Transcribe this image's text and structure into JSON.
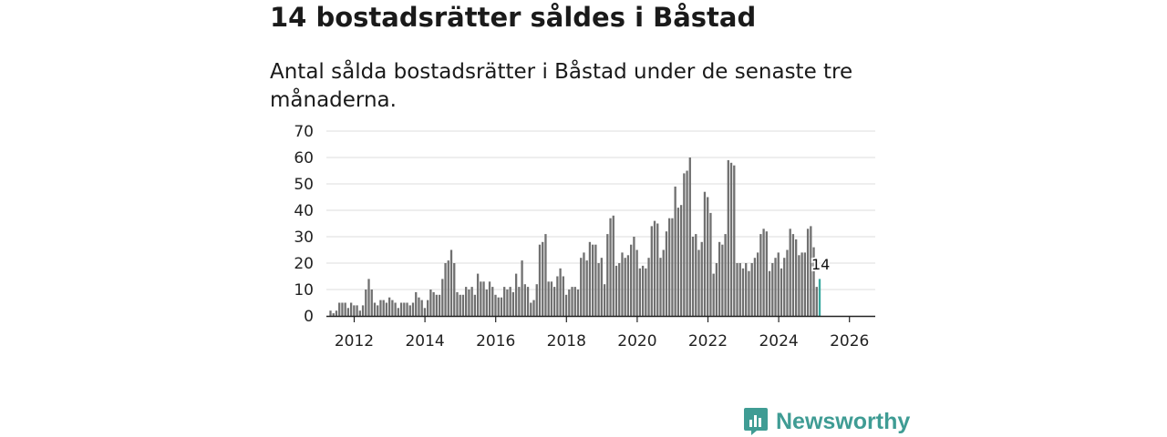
{
  "header": {
    "title": "14 bostadsrätter såldes i Båstad",
    "subtitle": "Antal sålda bostadsrätter i Båstad under de senaste tre månaderna."
  },
  "brand": {
    "name": "Newsworthy",
    "color": "#3f9c94"
  },
  "colors": {
    "bar": "#707070",
    "highlight": "#3aa99f",
    "grid": "#dddddd",
    "axis": "#222222"
  },
  "chart_data": {
    "type": "bar",
    "title": "14 bostadsrätter såldes i Båstad",
    "subtitle": "Antal sålda bostadsrätter i Båstad under de senaste tre månaderna.",
    "xlabel": "",
    "ylabel": "",
    "ylim": [
      0,
      70
    ],
    "yticks": [
      0,
      10,
      20,
      30,
      40,
      50,
      60,
      70
    ],
    "xticks": [
      "2012",
      "2014",
      "2016",
      "2018",
      "2020",
      "2022",
      "2024",
      "2026"
    ],
    "x_start": "2012-01",
    "interval": "month",
    "highlight": {
      "label": "14",
      "value": 14
    },
    "values": [
      2,
      1,
      2,
      5,
      5,
      5,
      3,
      5,
      4,
      4,
      2,
      4,
      10,
      14,
      10,
      5,
      4,
      6,
      6,
      5,
      7,
      6,
      5,
      3,
      5,
      5,
      5,
      4,
      5,
      9,
      7,
      6,
      3,
      6,
      10,
      9,
      8,
      8,
      14,
      20,
      21,
      25,
      20,
      9,
      8,
      8,
      11,
      10,
      11,
      8,
      16,
      13,
      13,
      10,
      13,
      11,
      8,
      7,
      7,
      11,
      10,
      11,
      9,
      16,
      11,
      21,
      12,
      11,
      5,
      6,
      12,
      27,
      28,
      31,
      13,
      13,
      11,
      15,
      18,
      15,
      8,
      10,
      11,
      11,
      10,
      22,
      24,
      21,
      28,
      27,
      27,
      20,
      22,
      12,
      31,
      37,
      38,
      19,
      20,
      24,
      22,
      23,
      27,
      30,
      25,
      18,
      19,
      18,
      22,
      34,
      36,
      35,
      22,
      25,
      32,
      37,
      37,
      49,
      41,
      42,
      54,
      55,
      60,
      30,
      31,
      25,
      28,
      47,
      45,
      39,
      16,
      20,
      28,
      27,
      31,
      59,
      58,
      57,
      20,
      20,
      18,
      20,
      17,
      20,
      22,
      24,
      31,
      33,
      32,
      17,
      20,
      22,
      24,
      18,
      22,
      25,
      33,
      31,
      29,
      23,
      24,
      24,
      33,
      34,
      26,
      11,
      14
    ]
  }
}
